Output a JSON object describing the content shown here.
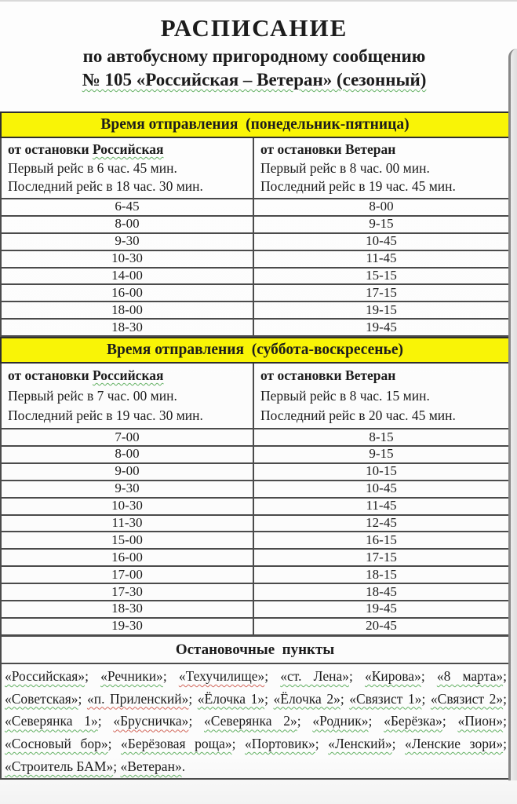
{
  "colors": {
    "highlight": "#f9f406",
    "table_border": "#4b4b4b",
    "spell_green": "#63b163",
    "spell_red": "#d2685c"
  },
  "header": {
    "title": "РАСПИСАНИЕ",
    "subtitle": "по автобусному пригородному сообщению",
    "route": "№ 105 «Российская – Ветеран» (сезонный)"
  },
  "sections": [
    {
      "band": "Время отправления  (понедельник-пятница)",
      "left": {
        "from_prefix": "от остановки ",
        "from_name": "Российская",
        "first_trip": "Первый рейс в 6 час. 45 мин.",
        "last_trip": "Последний рейс в 18 час. 30 мин."
      },
      "right": {
        "from_prefix": "от остановки ",
        "from_name": "Ветеран",
        "first_trip": "Первый рейс в 8 час. 00 мин.",
        "last_trip": "Последний рейс в 19 час. 45 мин."
      },
      "times": [
        [
          "6-45",
          "8-00"
        ],
        [
          "8-00",
          "9-15"
        ],
        [
          "9-30",
          "10-45"
        ],
        [
          "10-30",
          "11-45"
        ],
        [
          "14-00",
          "15-15"
        ],
        [
          "16-00",
          "17-15"
        ],
        [
          "18-00",
          "19-15"
        ],
        [
          "18-30",
          "19-45"
        ]
      ]
    },
    {
      "band": "Время отправления  (суббота-воскресенье)",
      "left": {
        "from_prefix": "от остановки ",
        "from_name": "Российская",
        "first_trip": "Первый рейс в 7 час. 00 мин.",
        "last_trip": "Последний рейс в 19 час. 30 мин."
      },
      "right": {
        "from_prefix": "от остановки ",
        "from_name": "Ветеран",
        "first_trip": "Первый рейс в 8 час. 15 мин.",
        "last_trip": "Последний рейс в 20 час. 45 мин."
      },
      "times": [
        [
          "7-00",
          "8-15"
        ],
        [
          "8-00",
          "9-15"
        ],
        [
          "9-00",
          "10-15"
        ],
        [
          "9-30",
          "10-45"
        ],
        [
          "10-30",
          "11-45"
        ],
        [
          "11-30",
          "12-45"
        ],
        [
          "15-00",
          "16-15"
        ],
        [
          "16-00",
          "17-15"
        ],
        [
          "17-00",
          "18-15"
        ],
        [
          "17-30",
          "18-45"
        ],
        [
          "18-30",
          "19-45"
        ],
        [
          "19-30",
          "20-45"
        ]
      ]
    }
  ],
  "stops": {
    "header": "Остановочные  пункты",
    "separator": ";",
    "terminator": ".",
    "items": [
      "«Российская»",
      "«Речники»",
      "«Техучилище»",
      "«ст. Лена»",
      "«Кирова»",
      "«8 марта»",
      "«Советская»",
      "«п. Приленский»",
      "«Ёлочка 1»",
      "«Ёлочка 2»",
      "«Связист 1»",
      "«Связист 2»",
      "«Северянка 1»",
      "«Брусничка»",
      "«Северянка 2»",
      "«Родник»",
      "«Берёзка»",
      "«Пион»",
      "«Сосновый бор»",
      "«Берёзовая роща»",
      "«Портовик»",
      "«Ленский»",
      "«Ленские зори»",
      "«Строитель БАМ»",
      "«Ветеран»"
    ],
    "misspelled_indices": [
      2,
      7,
      13
    ]
  }
}
